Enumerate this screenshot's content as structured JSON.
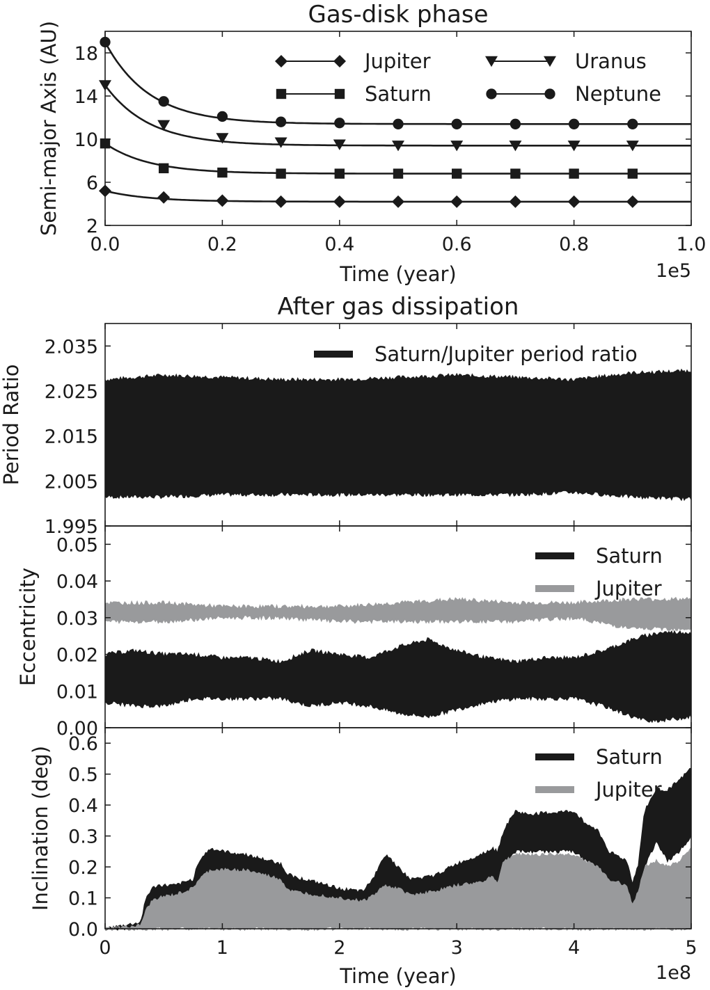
{
  "chart_data": [
    {
      "id": "gas-disk",
      "type": "line",
      "title": "Gas-disk phase",
      "xlabel": "Time (year)",
      "ylabel": "Semi-major Axis (AU)",
      "x_offset_text": "1e5",
      "xlim": [
        0.0,
        1.0
      ],
      "ylim": [
        2,
        20
      ],
      "xticks": [
        "0.0",
        "0.2",
        "0.4",
        "0.6",
        "0.8",
        "1.0"
      ],
      "yticks": [
        "2",
        "6",
        "10",
        "14",
        "18"
      ],
      "x": [
        0.0,
        0.1,
        0.2,
        0.3,
        0.4,
        0.5,
        0.6,
        0.7,
        0.8,
        0.9
      ],
      "legend_loc": "upper right",
      "series": [
        {
          "name": "Jupiter",
          "marker": "diamond",
          "values": [
            5.2,
            4.6,
            4.3,
            4.2,
            4.2,
            4.2,
            4.2,
            4.2,
            4.2,
            4.2
          ],
          "final": 4.2
        },
        {
          "name": "Saturn",
          "marker": "square",
          "values": [
            9.6,
            7.3,
            6.9,
            6.8,
            6.8,
            6.8,
            6.8,
            6.8,
            6.8,
            6.8
          ],
          "final": 6.8
        },
        {
          "name": "Uranus",
          "marker": "triangle-down",
          "values": [
            15.0,
            11.3,
            10.1,
            9.7,
            9.5,
            9.4,
            9.4,
            9.4,
            9.4,
            9.4
          ],
          "final": 9.4
        },
        {
          "name": "Neptune",
          "marker": "circle",
          "values": [
            19.0,
            13.5,
            12.1,
            11.6,
            11.5,
            11.4,
            11.4,
            11.4,
            11.4,
            11.4
          ],
          "final": 11.4
        }
      ]
    },
    {
      "id": "period-ratio",
      "type": "area",
      "title": "After gas dissipation",
      "ylabel": "Period Ratio",
      "xlim": [
        0,
        5
      ],
      "ylim": [
        1.995,
        2.04
      ],
      "yticks": [
        "1.995",
        "2.005",
        "2.015",
        "2.025",
        "2.035"
      ],
      "legend_loc": "upper right",
      "series": [
        {
          "name": "Saturn/Jupiter period ratio",
          "color": "#1a1a1a",
          "x": [
            0,
            0.5,
            1,
            1.5,
            2,
            2.5,
            3,
            3.5,
            4,
            4.5,
            5
          ],
          "upper": [
            2.0275,
            2.0285,
            2.028,
            2.0275,
            2.0275,
            2.028,
            2.0285,
            2.028,
            2.0275,
            2.029,
            2.0295
          ],
          "lower": [
            2.0015,
            2.0015,
            2.002,
            2.002,
            2.002,
            2.002,
            2.002,
            2.002,
            2.0025,
            2.0015,
            2.001
          ]
        }
      ]
    },
    {
      "id": "eccentricity",
      "type": "area",
      "ylabel": "Eccentricity",
      "xlim": [
        0,
        5
      ],
      "ylim": [
        0.0,
        0.055
      ],
      "yticks": [
        "0.00",
        "0.01",
        "0.02",
        "0.03",
        "0.04",
        "0.05"
      ],
      "legend_loc": "upper right",
      "series": [
        {
          "name": "Saturn",
          "color": "#1a1a1a",
          "x": [
            0,
            0.25,
            0.5,
            0.75,
            1,
            1.25,
            1.5,
            1.75,
            2,
            2.25,
            2.5,
            2.75,
            3,
            3.25,
            3.5,
            3.75,
            4,
            4.25,
            4.5,
            4.6,
            4.75,
            5
          ],
          "upper": [
            0.02,
            0.021,
            0.02,
            0.02,
            0.019,
            0.019,
            0.018,
            0.021,
            0.02,
            0.019,
            0.022,
            0.024,
            0.021,
            0.019,
            0.018,
            0.019,
            0.019,
            0.021,
            0.024,
            0.025,
            0.026,
            0.026
          ],
          "lower": [
            0.007,
            0.006,
            0.006,
            0.008,
            0.008,
            0.008,
            0.008,
            0.006,
            0.007,
            0.006,
            0.004,
            0.003,
            0.005,
            0.007,
            0.008,
            0.008,
            0.008,
            0.006,
            0.003,
            0.002,
            0.002,
            0.003
          ]
        },
        {
          "name": "Jupiter",
          "color": "#999a9c",
          "x": [
            0,
            0.5,
            1,
            1.5,
            2,
            2.5,
            3,
            3.5,
            4,
            4.5,
            5
          ],
          "upper": [
            0.034,
            0.034,
            0.033,
            0.033,
            0.033,
            0.034,
            0.035,
            0.034,
            0.034,
            0.035,
            0.035
          ],
          "lower": [
            0.029,
            0.029,
            0.03,
            0.03,
            0.029,
            0.029,
            0.029,
            0.029,
            0.03,
            0.027,
            0.027
          ]
        }
      ]
    },
    {
      "id": "inclination",
      "type": "area",
      "xlabel": "Time (year)",
      "ylabel": "Inclination (deg)",
      "x_offset_text": "1e8",
      "xlim": [
        0,
        5
      ],
      "ylim": [
        0.0,
        0.65
      ],
      "xticks": [
        "0",
        "1",
        "2",
        "3",
        "4",
        "5"
      ],
      "yticks": [
        "0.0",
        "0.1",
        "0.2",
        "0.3",
        "0.4",
        "0.5",
        "0.6"
      ],
      "legend_loc": "upper right",
      "series": [
        {
          "name": "Saturn",
          "color": "#1a1a1a",
          "x": [
            0,
            0.3,
            0.35,
            0.4,
            0.45,
            0.6,
            0.75,
            0.8,
            0.9,
            1.0,
            1.2,
            1.4,
            1.5,
            1.55,
            1.6,
            1.8,
            2.0,
            2.2,
            2.3,
            2.35,
            2.4,
            2.5,
            2.6,
            2.8,
            3.0,
            3.2,
            3.3,
            3.35,
            3.4,
            3.5,
            3.6,
            4.0,
            4.1,
            4.2,
            4.3,
            4.45,
            4.5,
            4.55,
            4.6,
            4.7,
            4.8,
            4.9,
            5.0
          ],
          "upper": [
            0.0,
            0.02,
            0.1,
            0.13,
            0.14,
            0.14,
            0.16,
            0.22,
            0.26,
            0.25,
            0.24,
            0.22,
            0.21,
            0.18,
            0.17,
            0.15,
            0.13,
            0.12,
            0.17,
            0.22,
            0.24,
            0.2,
            0.16,
            0.17,
            0.21,
            0.24,
            0.26,
            0.25,
            0.32,
            0.38,
            0.37,
            0.38,
            0.34,
            0.32,
            0.25,
            0.22,
            0.15,
            0.21,
            0.38,
            0.45,
            0.45,
            0.48,
            0.52
          ],
          "lower": [
            0.0,
            0.0,
            0.03,
            0.06,
            0.08,
            0.09,
            0.11,
            0.14,
            0.18,
            0.18,
            0.17,
            0.15,
            0.14,
            0.11,
            0.1,
            0.09,
            0.08,
            0.07,
            0.08,
            0.1,
            0.12,
            0.11,
            0.08,
            0.09,
            0.12,
            0.13,
            0.15,
            0.12,
            0.2,
            0.25,
            0.25,
            0.25,
            0.22,
            0.2,
            0.15,
            0.12,
            0.08,
            0.1,
            0.2,
            0.28,
            0.22,
            0.25,
            0.3
          ]
        },
        {
          "name": "Jupiter",
          "color": "#999a9c",
          "x": [
            0,
            0.3,
            0.35,
            0.4,
            0.45,
            0.6,
            0.75,
            0.8,
            0.9,
            1.0,
            1.2,
            1.4,
            1.5,
            1.55,
            1.6,
            1.8,
            2.0,
            2.2,
            2.3,
            2.35,
            2.4,
            2.5,
            2.6,
            2.8,
            3.0,
            3.2,
            3.3,
            3.35,
            3.4,
            3.5,
            3.6,
            4.0,
            4.1,
            4.2,
            4.3,
            4.45,
            4.5,
            4.55,
            4.6,
            4.7,
            4.8,
            4.9,
            5.0
          ],
          "upper": [
            0.0,
            0.01,
            0.06,
            0.09,
            0.1,
            0.11,
            0.13,
            0.16,
            0.19,
            0.19,
            0.19,
            0.17,
            0.16,
            0.13,
            0.12,
            0.11,
            0.1,
            0.09,
            0.11,
            0.13,
            0.14,
            0.13,
            0.11,
            0.12,
            0.14,
            0.15,
            0.17,
            0.15,
            0.22,
            0.24,
            0.24,
            0.24,
            0.22,
            0.2,
            0.16,
            0.14,
            0.08,
            0.12,
            0.2,
            0.22,
            0.2,
            0.22,
            0.26
          ],
          "lower": [
            0.0,
            0.0,
            0.0,
            0.0,
            0.0,
            0.0,
            0.0,
            0.0,
            0.0,
            0.0,
            0.0,
            0.0,
            0.0,
            0.0,
            0.0,
            0.0,
            0.0,
            0.0,
            0.0,
            0.0,
            0.0,
            0.0,
            0.0,
            0.0,
            0.0,
            0.0,
            0.0,
            0.0,
            0.0,
            0.0,
            0.0,
            0.0,
            0.0,
            0.0,
            0.0,
            0.0,
            0.0,
            0.0,
            0.0,
            0.0,
            0.0,
            0.0,
            0.0
          ]
        }
      ]
    }
  ]
}
